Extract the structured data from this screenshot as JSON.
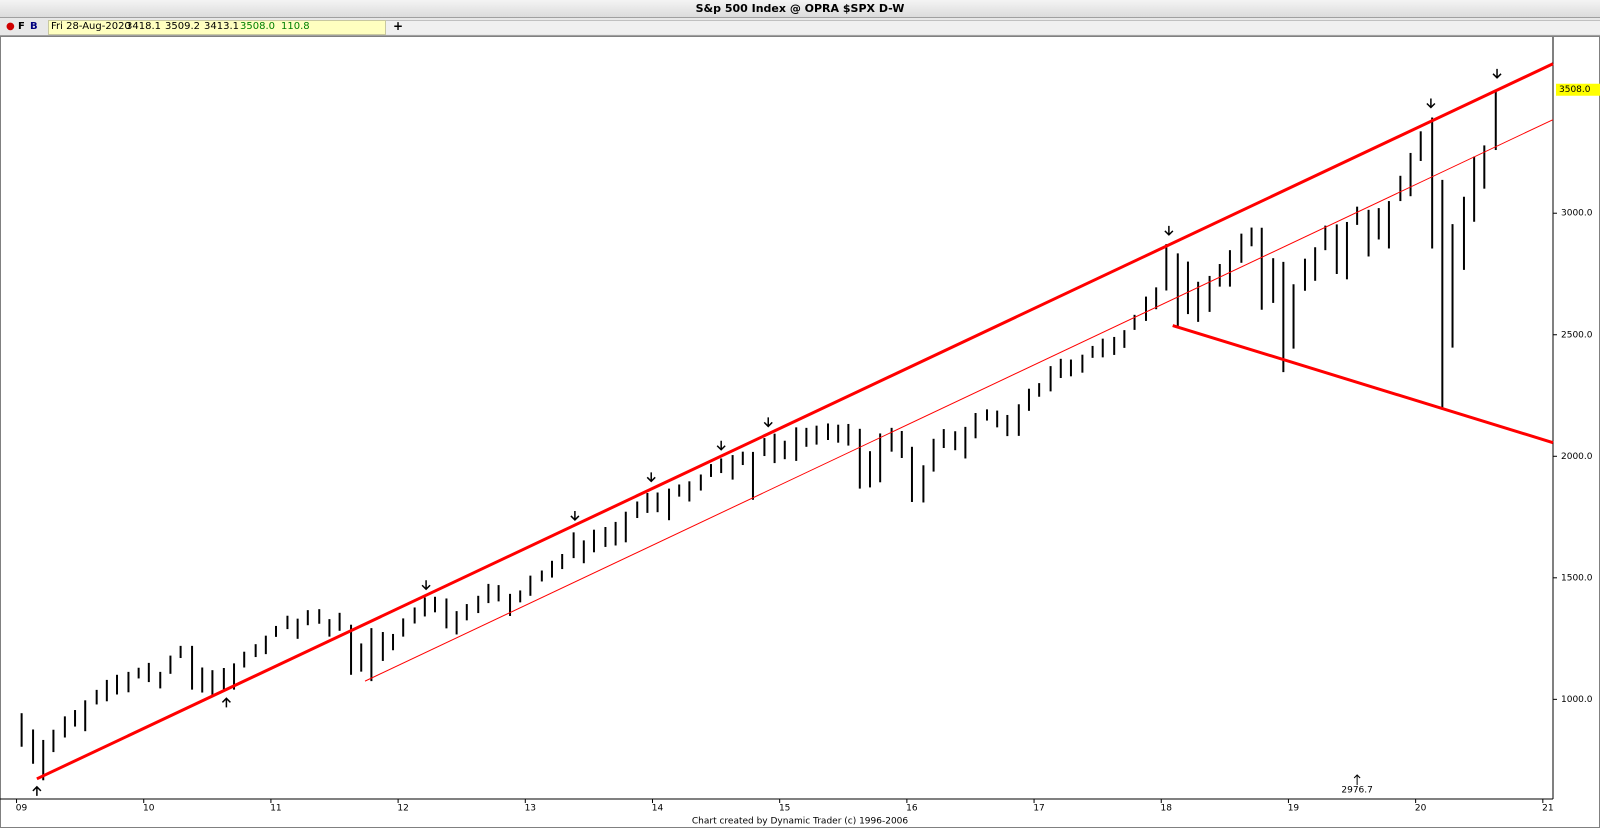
{
  "window": {
    "title": "S&p 500 Index @ OPRA $SPX   D-W",
    "f_button": "F",
    "b_button": "B",
    "date": "Fri 28-Aug-2020",
    "open": "3418.1",
    "high": "3509.2",
    "low": "3413.1",
    "close": "3508.0",
    "change": "110.8",
    "add_button": "+",
    "footer": "Chart created by Dynamic Trader  (c) 1996-2006"
  },
  "chart_data": {
    "type": "ohlc-bar",
    "color": "#000000",
    "trend_color": "#ff0000",
    "xlim": [
      2008.87,
      2021.08
    ],
    "ylim": [
      590,
      3725
    ],
    "xticks": [
      {
        "value": 2009,
        "label": "09"
      },
      {
        "value": 2010,
        "label": "10"
      },
      {
        "value": 2011,
        "label": "11"
      },
      {
        "value": 2012,
        "label": "12"
      },
      {
        "value": 2013,
        "label": "13"
      },
      {
        "value": 2014,
        "label": "14"
      },
      {
        "value": 2015,
        "label": "15"
      },
      {
        "value": 2016,
        "label": "16"
      },
      {
        "value": 2017,
        "label": "17"
      },
      {
        "value": 2018,
        "label": "18"
      },
      {
        "value": 2019,
        "label": "19"
      },
      {
        "value": 2020,
        "label": "20"
      },
      {
        "value": 2021,
        "label": "21"
      }
    ],
    "yticks": [
      {
        "value": 1000,
        "label": "1000.0"
      },
      {
        "value": 1500,
        "label": "1500.0"
      },
      {
        "value": 2000,
        "label": "2000.0"
      },
      {
        "value": 2500,
        "label": "2500.0"
      },
      {
        "value": 3000,
        "label": "3000.0"
      }
    ],
    "last_price": {
      "value": 3508,
      "label": "3508.0"
    },
    "x": [
      2009.04,
      2009.13,
      2009.21,
      2009.29,
      2009.38,
      2009.46,
      2009.54,
      2009.63,
      2009.71,
      2009.79,
      2009.88,
      2009.96,
      2010.04,
      2010.13,
      2010.21,
      2010.29,
      2010.38,
      2010.46,
      2010.54,
      2010.63,
      2010.71,
      2010.79,
      2010.88,
      2010.96,
      2011.04,
      2011.13,
      2011.21,
      2011.29,
      2011.38,
      2011.46,
      2011.54,
      2011.63,
      2011.71,
      2011.79,
      2011.88,
      2011.96,
      2012.04,
      2012.13,
      2012.21,
      2012.29,
      2012.38,
      2012.46,
      2012.54,
      2012.63,
      2012.71,
      2012.79,
      2012.88,
      2012.96,
      2013.04,
      2013.13,
      2013.21,
      2013.29,
      2013.38,
      2013.46,
      2013.54,
      2013.63,
      2013.71,
      2013.79,
      2013.88,
      2013.96,
      2014.04,
      2014.13,
      2014.21,
      2014.29,
      2014.38,
      2014.46,
      2014.54,
      2014.63,
      2014.71,
      2014.79,
      2014.88,
      2014.96,
      2015.04,
      2015.13,
      2015.21,
      2015.29,
      2015.38,
      2015.46,
      2015.54,
      2015.63,
      2015.71,
      2015.79,
      2015.88,
      2015.96,
      2016.04,
      2016.13,
      2016.21,
      2016.29,
      2016.38,
      2016.46,
      2016.54,
      2016.63,
      2016.71,
      2016.79,
      2016.88,
      2016.96,
      2017.04,
      2017.13,
      2017.21,
      2017.29,
      2017.38,
      2017.46,
      2017.54,
      2017.63,
      2017.71,
      2017.79,
      2017.88,
      2017.96,
      2018.04,
      2018.13,
      2018.21,
      2018.29,
      2018.38,
      2018.46,
      2018.54,
      2018.63,
      2018.71,
      2018.79,
      2018.88,
      2018.96,
      2019.04,
      2019.13,
      2019.21,
      2019.29,
      2019.38,
      2019.46,
      2019.54,
      2019.63,
      2019.71,
      2019.79,
      2019.88,
      2019.96,
      2020.04,
      2020.13,
      2020.21,
      2020.29,
      2020.38,
      2020.46,
      2020.54,
      2020.63
    ],
    "high": [
      943,
      876,
      833,
      875,
      930,
      956,
      996,
      1039,
      1080,
      1101,
      1113,
      1130,
      1150,
      1113,
      1180,
      1220,
      1220,
      1131,
      1120,
      1129,
      1148,
      1196,
      1227,
      1262,
      1302,
      1344,
      1332,
      1367,
      1371,
      1330,
      1356,
      1307,
      1230,
      1293,
      1277,
      1269,
      1333,
      1378,
      1419,
      1422,
      1415,
      1363,
      1392,
      1426,
      1475,
      1470,
      1434,
      1448,
      1509,
      1530,
      1570,
      1598,
      1687,
      1654,
      1698,
      1709,
      1730,
      1772,
      1814,
      1849,
      1851,
      1867,
      1884,
      1897,
      1925,
      1968,
      1991,
      2005,
      2019,
      2018,
      2075,
      2093,
      2064,
      2119,
      2117,
      2126,
      2135,
      2130,
      2133,
      2113,
      2021,
      2094,
      2117,
      2104,
      2039,
      1963,
      2072,
      2112,
      2103,
      2121,
      2178,
      2193,
      2188,
      2170,
      2214,
      2278,
      2301,
      2371,
      2401,
      2398,
      2418,
      2454,
      2484,
      2491,
      2519,
      2582,
      2657,
      2695,
      2873,
      2835,
      2801,
      2718,
      2742,
      2791,
      2848,
      2916,
      2941,
      2940,
      2815,
      2800,
      2708,
      2813,
      2860,
      2949,
      2954,
      2964,
      3027,
      3014,
      3021,
      3050,
      3154,
      3248,
      3337,
      3394,
      3137,
      2955,
      3068,
      3233,
      3279,
      3509
    ],
    "low": [
      805,
      735,
      667,
      783,
      843,
      888,
      869,
      979,
      992,
      1020,
      1029,
      1086,
      1071,
      1045,
      1105,
      1170,
      1040,
      1028,
      1011,
      1040,
      1040,
      1131,
      1174,
      1186,
      1257,
      1289,
      1249,
      1305,
      1311,
      1258,
      1282,
      1101,
      1114,
      1075,
      1158,
      1202,
      1258,
      1312,
      1341,
      1358,
      1292,
      1267,
      1325,
      1355,
      1396,
      1403,
      1343,
      1399,
      1426,
      1485,
      1501,
      1536,
      1581,
      1560,
      1605,
      1627,
      1633,
      1646,
      1746,
      1767,
      1770,
      1737,
      1834,
      1814,
      1859,
      1915,
      1931,
      1904,
      1964,
      1821,
      2001,
      1972,
      1988,
      1981,
      2039,
      2048,
      2067,
      2056,
      2044,
      1867,
      1872,
      1893,
      2019,
      1993,
      1812,
      1810,
      1937,
      2034,
      2025,
      1991,
      2074,
      2147,
      2119,
      2083,
      2084,
      2187,
      2245,
      2267,
      2322,
      2329,
      2344,
      2405,
      2407,
      2417,
      2446,
      2520,
      2557,
      2605,
      2682,
      2533,
      2585,
      2553,
      2594,
      2698,
      2698,
      2796,
      2864,
      2603,
      2631,
      2346,
      2443,
      2681,
      2722,
      2848,
      2750,
      2728,
      2952,
      2822,
      2892,
      2855,
      3050,
      3070,
      3215,
      2855,
      2192,
      2447,
      2767,
      2965,
      3101,
      3260
    ],
    "trendlines": [
      {
        "x": [
          2009.16,
          2021.08
        ],
        "y": [
          673,
          3615
        ],
        "width": 3
      },
      {
        "x": [
          2011.74,
          2021.08
        ],
        "y": [
          1075,
          3385
        ],
        "width": 1
      },
      {
        "x": [
          2018.09,
          2021.08
        ],
        "y": [
          2538,
          2056
        ],
        "width": 3
      }
    ],
    "down_arrows": {
      "x": [
        2012.22,
        2013.39,
        2013.99,
        2014.54,
        2014.91,
        2018.06,
        2020.12,
        2020.64
      ],
      "y": [
        1453,
        1738,
        1897,
        2027,
        2123,
        2911,
        3435,
        3557
      ]
    },
    "up_arrows": {
      "x": [
        2009.16,
        2010.65
      ],
      "y": [
        640,
        1004
      ]
    },
    "cursor": {
      "x": 2019.54,
      "label": "2976.7"
    }
  }
}
